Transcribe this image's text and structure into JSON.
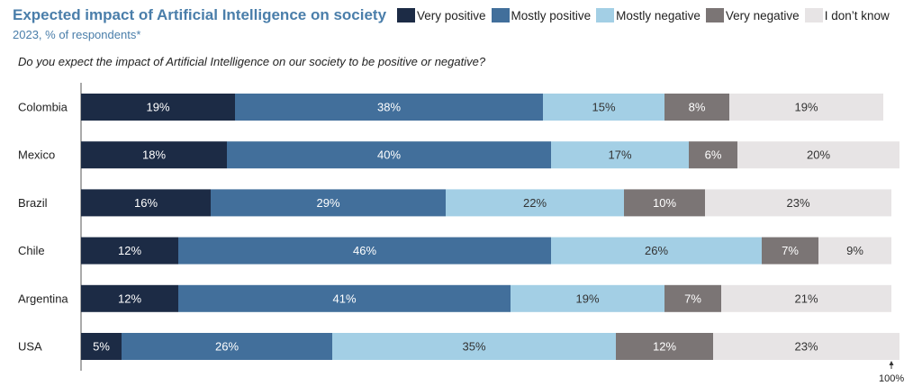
{
  "chart_data": {
    "type": "bar",
    "orientation": "horizontal",
    "stacked": true,
    "title": "Expected impact of Artificial Intelligence on society",
    "subtitle": "2023, % of respondents*",
    "question": "Do you expect the impact of Artificial Intelligence on our society to be positive or negative?",
    "categories": [
      "Colombia",
      "Mexico",
      "Brazil",
      "Chile",
      "Argentina",
      "USA"
    ],
    "series": [
      {
        "name": "Very positive",
        "color": "#1c2b45",
        "label_color": "#ffffff",
        "values": [
          19,
          18,
          16,
          12,
          12,
          5
        ]
      },
      {
        "name": "Mostly positive",
        "color": "#426f9b",
        "label_color": "#ffffff",
        "values": [
          38,
          40,
          29,
          46,
          41,
          26
        ]
      },
      {
        "name": "Mostly negative",
        "color": "#a3cfe5",
        "label_color": "#333333",
        "values": [
          15,
          17,
          22,
          26,
          19,
          35
        ]
      },
      {
        "name": "Very negative",
        "color": "#7b7575",
        "label_color": "#ffffff",
        "values": [
          8,
          6,
          10,
          7,
          7,
          12
        ]
      },
      {
        "name": "I don’t know",
        "color": "#e7e4e5",
        "label_color": "#333333",
        "values": [
          19,
          20,
          23,
          9,
          21,
          23
        ]
      }
    ],
    "value_suffix": "%",
    "axis_end_label": "100%",
    "xlim": [
      0,
      100
    ],
    "legend_position": "top-right",
    "grid": false
  }
}
